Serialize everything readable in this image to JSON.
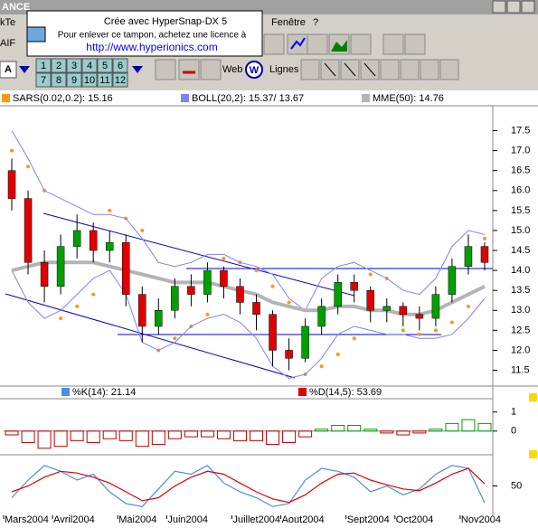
{
  "window": {
    "title": "ANCE",
    "menu": [
      "kTe",
      "Fenêtre",
      "?"
    ]
  },
  "watermark": {
    "line1": "Crée avec HyperSnap-DX 5",
    "line2": "Pour enlever ce tampon, achetez une licence à",
    "url": "http://www.hyperionics.com"
  },
  "toolbar": {
    "symbol": "AIF",
    "font_button": "A",
    "periods": [
      "1",
      "2",
      "3",
      "4",
      "5",
      "6",
      "7",
      "8",
      "9",
      "10",
      "11",
      "12"
    ],
    "web": "Web",
    "web_icon": "W",
    "lines": "Lignes"
  },
  "chart_data": [
    {
      "type": "candlestick",
      "categories": [
        "Mars2004",
        null,
        null,
        "Avril2004",
        null,
        null,
        null,
        "Mai2004",
        null,
        null,
        "Juin2004",
        null,
        null,
        null,
        "Juillet2004",
        null,
        null,
        "Aout2004",
        null,
        null,
        null,
        "Sept2004",
        null,
        null,
        "Oct2004",
        null,
        null,
        null,
        "Nov2004",
        null
      ],
      "open": [
        16.5,
        15.8,
        14.2,
        13.6,
        14.6,
        15.0,
        14.5,
        14.7,
        13.4,
        12.6,
        13.0,
        13.6,
        13.4,
        14.0,
        13.6,
        13.2,
        12.9,
        12.0,
        11.8,
        12.6,
        13.1,
        13.7,
        13.5,
        13.0,
        13.1,
        12.9,
        12.8,
        13.4,
        14.1,
        14.6
      ],
      "high": [
        16.8,
        16.0,
        14.5,
        14.9,
        15.4,
        15.2,
        15.0,
        14.9,
        13.6,
        13.3,
        13.8,
        13.9,
        14.2,
        14.1,
        13.8,
        13.4,
        13.0,
        12.3,
        12.8,
        13.3,
        13.9,
        13.9,
        13.6,
        13.3,
        13.2,
        13.1,
        13.6,
        14.3,
        14.9,
        14.7
      ],
      "low": [
        15.5,
        13.9,
        13.2,
        13.4,
        14.3,
        14.2,
        14.2,
        13.1,
        12.2,
        12.4,
        12.8,
        13.1,
        13.2,
        13.3,
        12.9,
        12.5,
        11.6,
        11.5,
        11.7,
        12.4,
        12.9,
        13.2,
        12.7,
        12.7,
        12.6,
        12.5,
        12.6,
        13.2,
        13.9,
        14.0
      ],
      "close": [
        15.8,
        14.2,
        13.6,
        14.6,
        15.0,
        14.5,
        14.7,
        13.4,
        12.6,
        13.0,
        13.6,
        13.4,
        14.0,
        13.6,
        13.2,
        12.9,
        12.0,
        11.8,
        12.6,
        13.1,
        13.7,
        13.5,
        13.0,
        13.1,
        12.9,
        12.8,
        13.4,
        14.1,
        14.6,
        14.2
      ],
      "up_color": "#00a000",
      "down_color": "#e00000",
      "series": [
        {
          "name": "SARS(0.02,0.2): 15.16",
          "color": "#ff9900",
          "style": "dots",
          "values": [
            17.0,
            16.6,
            16.0,
            12.8,
            13.1,
            13.4,
            15.5,
            15.3,
            15.0,
            12.0,
            12.3,
            12.6,
            12.9,
            14.3,
            14.2,
            14.0,
            13.6,
            13.2,
            11.4,
            11.6,
            11.9,
            12.3,
            13.9,
            13.8,
            12.5,
            12.4,
            12.5,
            12.7,
            13.1,
            14.8
          ]
        },
        {
          "name": "BOLL(20,2): 15.37/ 13.67",
          "color": "#8080ff",
          "style": "band",
          "values": [
            17.5,
            16.8,
            16.0,
            15.8,
            15.6,
            15.4,
            15.4,
            15.3,
            14.8,
            14.2,
            14.1,
            14.2,
            14.4,
            14.4,
            14.2,
            14.1,
            13.9,
            13.3,
            13.0,
            13.8,
            14.1,
            14.2,
            14.0,
            13.8,
            13.5,
            13.4,
            13.8,
            14.6,
            15.0,
            14.9
          ],
          "lower": [
            14.0,
            13.2,
            12.8,
            13.0,
            13.4,
            13.8,
            14.0,
            13.4,
            12.2,
            12.0,
            12.2,
            12.6,
            12.8,
            12.9,
            12.7,
            12.3,
            11.6,
            11.3,
            11.4,
            11.8,
            12.4,
            12.6,
            12.5,
            12.4,
            12.4,
            12.3,
            12.3,
            12.4,
            12.8,
            13.3
          ]
        },
        {
          "name": "MME(50): 14.76",
          "color": "#b4b4b4",
          "style": "line",
          "values": [
            14.0,
            14.1,
            14.2,
            14.2,
            14.2,
            14.2,
            14.1,
            14.0,
            13.9,
            13.8,
            13.7,
            13.7,
            13.7,
            13.6,
            13.5,
            13.4,
            13.2,
            13.1,
            13.0,
            13.0,
            13.1,
            13.1,
            13.0,
            13.0,
            12.9,
            12.9,
            13.0,
            13.2,
            13.4,
            13.6
          ]
        }
      ],
      "ylim": [
        11.15,
        18.1
      ],
      "yticks": [
        11.5,
        {
          "value": 12,
          "label": "12.0"
        },
        12.5,
        {
          "value": 13,
          "label": "13.0"
        },
        13.5,
        {
          "value": 14,
          "label": "14.0"
        },
        14.5,
        {
          "value": 15,
          "label": "15.0"
        },
        15.5,
        {
          "value": 16,
          "label": "16.0"
        },
        16.5,
        {
          "value": 17,
          "label": "17.0"
        },
        17.5
      ]
    },
    {
      "type": "histogram",
      "values": [
        -0.2,
        -0.6,
        -0.9,
        -0.8,
        -0.5,
        -0.6,
        -0.4,
        -0.5,
        -0.8,
        -0.7,
        -0.4,
        -0.3,
        -0.3,
        -0.4,
        -0.5,
        -0.5,
        -0.7,
        -0.6,
        -0.3,
        0.1,
        0.3,
        0.3,
        0.1,
        -0.1,
        -0.2,
        -0.1,
        0.1,
        0.4,
        0.6,
        0.4
      ],
      "positive_color": "#00a000",
      "negative_color": "#c00000",
      "ylim": [
        -1.1,
        1.65
      ],
      "yticks": [
        0,
        1
      ]
    },
    {
      "type": "line",
      "series": [
        {
          "name": "%K(14): 21.14",
          "color": "#4a90e2",
          "values": [
            30,
            60,
            85,
            75,
            60,
            70,
            40,
            20,
            15,
            45,
            75,
            70,
            85,
            55,
            40,
            30,
            15,
            20,
            60,
            80,
            75,
            65,
            40,
            50,
            35,
            45,
            70,
            85,
            80,
            21.14
          ]
        },
        {
          "name": "%D(14,5): 53.69",
          "color": "#e00000",
          "values": [
            40,
            50,
            65,
            75,
            72,
            65,
            55,
            40,
            25,
            30,
            50,
            65,
            75,
            70,
            55,
            40,
            28,
            22,
            35,
            55,
            70,
            72,
            60,
            52,
            45,
            42,
            55,
            70,
            80,
            53.69
          ]
        }
      ],
      "ylim": [
        0,
        100
      ],
      "yticks": [
        50
      ]
    }
  ]
}
